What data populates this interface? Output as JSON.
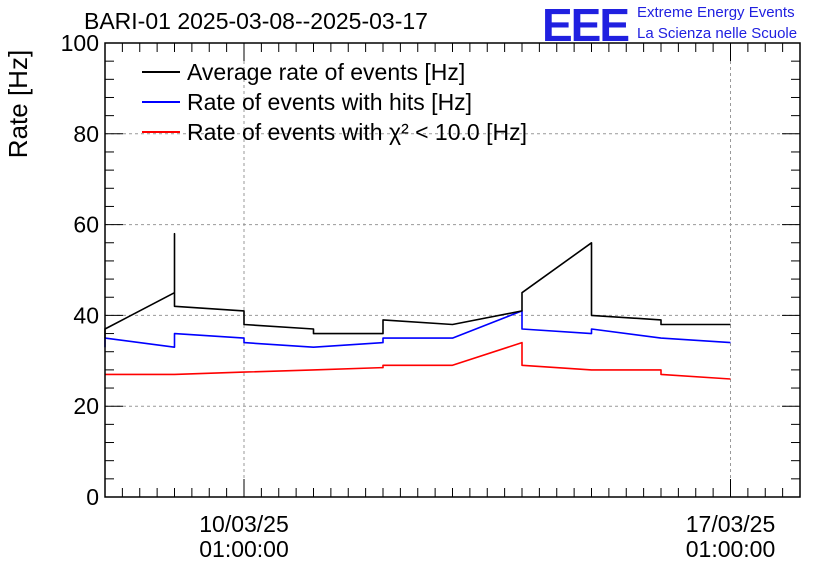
{
  "title": "BARI-01 2025-03-08--2025-03-17",
  "logo": {
    "mark": "EEE",
    "line1": "Extreme Energy Events",
    "line2": "La Scienza nelle Scuole",
    "color": "#2020e0"
  },
  "chart_data": {
    "type": "line",
    "title": "BARI-01 2025-03-08--2025-03-17",
    "xlabel": "",
    "ylabel": "Rate [Hz]",
    "ylim": [
      0,
      100
    ],
    "yticks": [
      0,
      20,
      40,
      60,
      80,
      100
    ],
    "xlim": [
      "2025-03-08",
      "2025-03-18"
    ],
    "xticks": [
      {
        "date": "2025-03-10",
        "line1": "10/03/25",
        "line2": "01:00:00"
      },
      {
        "date": "2025-03-17",
        "line1": "17/03/25",
        "line2": "01:00:00"
      }
    ],
    "grid": true,
    "legend_position": "top-left",
    "series": [
      {
        "name": "Average rate of events [Hz]",
        "color": "#000000",
        "points": [
          [
            "2025-03-08",
            35
          ],
          [
            "2025-03-08",
            37
          ],
          [
            "2025-03-09",
            45
          ],
          [
            "2025-03-09",
            58
          ],
          [
            "2025-03-09",
            42
          ],
          [
            "2025-03-10",
            41
          ],
          [
            "2025-03-10",
            38
          ],
          [
            "2025-03-11",
            37
          ],
          [
            "2025-03-11",
            36
          ],
          [
            "2025-03-12",
            36
          ],
          [
            "2025-03-12",
            39
          ],
          [
            "2025-03-13",
            38
          ],
          [
            "2025-03-14",
            41
          ],
          [
            "2025-03-14",
            45
          ],
          [
            "2025-03-15",
            56
          ],
          [
            "2025-03-15",
            48
          ],
          [
            "2025-03-15",
            40
          ],
          [
            "2025-03-16",
            39
          ],
          [
            "2025-03-16",
            38
          ],
          [
            "2025-03-17",
            38
          ],
          [
            "2025-03-17",
            38
          ]
        ]
      },
      {
        "name": "Rate of events with hits [Hz]",
        "color": "#0000ff",
        "points": [
          [
            "2025-03-08",
            33
          ],
          [
            "2025-03-08",
            35
          ],
          [
            "2025-03-09",
            33
          ],
          [
            "2025-03-09",
            36
          ],
          [
            "2025-03-10",
            35
          ],
          [
            "2025-03-10",
            34
          ],
          [
            "2025-03-11",
            33
          ],
          [
            "2025-03-11",
            33
          ],
          [
            "2025-03-12",
            34
          ],
          [
            "2025-03-12",
            35
          ],
          [
            "2025-03-13",
            35
          ],
          [
            "2025-03-14",
            41
          ],
          [
            "2025-03-14",
            37
          ],
          [
            "2025-03-15",
            36
          ],
          [
            "2025-03-15",
            37
          ],
          [
            "2025-03-16",
            35
          ],
          [
            "2025-03-16",
            35
          ],
          [
            "2025-03-17",
            34
          ],
          [
            "2025-03-17",
            34
          ]
        ]
      },
      {
        "name": "Rate of events with χ² < 10.0 [Hz]",
        "color": "#ff0000",
        "points": [
          [
            "2025-03-08",
            27
          ],
          [
            "2025-03-08",
            27
          ],
          [
            "2025-03-09",
            27
          ],
          [
            "2025-03-10",
            27.5
          ],
          [
            "2025-03-10",
            27.5
          ],
          [
            "2025-03-11",
            28
          ],
          [
            "2025-03-11",
            28
          ],
          [
            "2025-03-12",
            28.5
          ],
          [
            "2025-03-12",
            29
          ],
          [
            "2025-03-13",
            29
          ],
          [
            "2025-03-14",
            34
          ],
          [
            "2025-03-14",
            29
          ],
          [
            "2025-03-15",
            28
          ],
          [
            "2025-03-15",
            28
          ],
          [
            "2025-03-16",
            28
          ],
          [
            "2025-03-16",
            27
          ],
          [
            "2025-03-17",
            26
          ],
          [
            "2025-03-17",
            26
          ]
        ]
      }
    ]
  }
}
